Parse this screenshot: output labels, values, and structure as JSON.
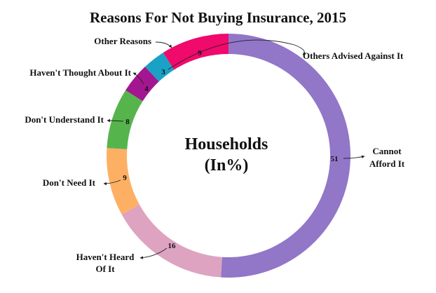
{
  "chart_data": {
    "type": "pie",
    "variant": "donut",
    "title": "Reasons For Not Buying Insurance, 2015",
    "center_label": [
      "Households",
      "(In%)"
    ],
    "slices": [
      {
        "label": [
          "Cannot",
          "Afford It"
        ],
        "value": 51,
        "color": "#9276c8"
      },
      {
        "label": [
          "Haven't Heard",
          "Of It"
        ],
        "value": 16,
        "color": "#dea3c1"
      },
      {
        "label": [
          "Don't Need It"
        ],
        "value": 9,
        "color": "#fdb064"
      },
      {
        "label": [
          "Don't Understand It"
        ],
        "value": 8,
        "color": "#56b44d"
      },
      {
        "label": [
          "Haven't Thought About It"
        ],
        "value": 4,
        "color": "#a3168f"
      },
      {
        "label": [
          "Others Advised Against It"
        ],
        "value": 3,
        "color": "#1aa2c6"
      },
      {
        "label": [
          "Other Reasons"
        ],
        "value": 9,
        "color": "#ef0a6c"
      }
    ],
    "start": "12 o'clock",
    "direction": "clockwise",
    "legend": "none (callout labels)"
  }
}
